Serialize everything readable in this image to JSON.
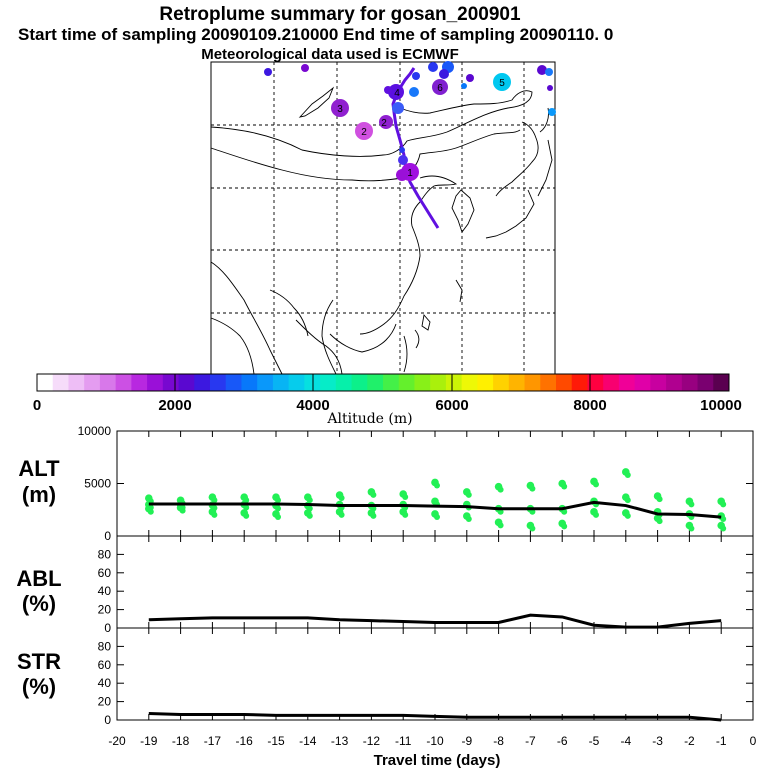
{
  "header": {
    "title": "Retroplume summary for gosan_200901",
    "subtitle": "Start time of sampling 20090109.210000     End time of sampling 20090110.     0",
    "subtitle2": "Meteorological data used is ECMWF"
  },
  "map": {
    "track_color": "#6010e0",
    "puffs": [
      {
        "label": "1",
        "color": "#a010e0"
      },
      {
        "label": "2",
        "color": "#b030e0"
      },
      {
        "label": "2",
        "color": "#d050e0"
      },
      {
        "label": "3",
        "color": "#9020d0"
      },
      {
        "label": "4",
        "color": "#4040ff"
      },
      {
        "label": "5",
        "color": "#00c8f0"
      },
      {
        "label": "6",
        "color": "#8020d0"
      }
    ]
  },
  "colorbar": {
    "ticks": [
      "0",
      "2000",
      "4000",
      "6000",
      "8000",
      "10000"
    ],
    "label": "Altitude (m)",
    "colors": [
      "#ffffff",
      "#f6dcfa",
      "#eebef6",
      "#e49cf0",
      "#d878ea",
      "#cc50e4",
      "#b828e0",
      "#9a10d8",
      "#7808d0",
      "#5a08d0",
      "#3c18e0",
      "#2838f0",
      "#1858f8",
      "#0878fa",
      "#0a98fa",
      "#08b4f4",
      "#06ccec",
      "#06e0e0",
      "#06ecc8",
      "#06f0aa",
      "#0cf08a",
      "#20f06a",
      "#44f048",
      "#64f02c",
      "#88f018",
      "#aaf00c",
      "#ccf406",
      "#eef806",
      "#fff000",
      "#ffd200",
      "#ffb400",
      "#ff9600",
      "#ff7200",
      "#ff4a00",
      "#ff1a08",
      "#ff0040",
      "#f80070",
      "#f00098",
      "#e000a8",
      "#c800a0",
      "#b00090",
      "#980080",
      "#7a0070",
      "#5a0050"
    ]
  },
  "chart_data": [
    {
      "type": "line",
      "panel": "ALT",
      "ylabel_line1": "ALT",
      "ylabel_line2": "(m)",
      "ylim": [
        0,
        10000
      ],
      "xlim": [
        -20,
        0
      ],
      "yticks": [
        "0",
        "5000",
        "10000"
      ],
      "x": [
        -19,
        -18,
        -17,
        -16,
        -15,
        -14,
        -13,
        -12,
        -11,
        -10,
        -9,
        -8,
        -7,
        -6,
        -5,
        -4,
        -3,
        -2,
        -1
      ],
      "values": [
        3050,
        3050,
        3050,
        3050,
        3050,
        3000,
        2900,
        2900,
        2900,
        2850,
        2800,
        2600,
        2600,
        2600,
        3200,
        2900,
        2100,
        2050,
        1800
      ],
      "scatter_color": "#22f055",
      "scatter": [
        [
          -19,
          3600
        ],
        [
          -19,
          3000
        ],
        [
          -19,
          2600
        ],
        [
          -18,
          3400
        ],
        [
          -18,
          3000
        ],
        [
          -18,
          2700
        ],
        [
          -17,
          3700
        ],
        [
          -17,
          2950
        ],
        [
          -17,
          2300
        ],
        [
          -16,
          3700
        ],
        [
          -16,
          3000
        ],
        [
          -16,
          2200
        ],
        [
          -15,
          3700
        ],
        [
          -15,
          2900
        ],
        [
          -15,
          2100
        ],
        [
          -14,
          3700
        ],
        [
          -14,
          2900
        ],
        [
          -14,
          2200
        ],
        [
          -13,
          3900
        ],
        [
          -13,
          3000
        ],
        [
          -13,
          2300
        ],
        [
          -12,
          4200
        ],
        [
          -12,
          2900
        ],
        [
          -12,
          2200
        ],
        [
          -11,
          4000
        ],
        [
          -11,
          3000
        ],
        [
          -11,
          2300
        ],
        [
          -10,
          5100
        ],
        [
          -10,
          3300
        ],
        [
          -10,
          2100
        ],
        [
          -9,
          4200
        ],
        [
          -9,
          3000
        ],
        [
          -9,
          1900
        ],
        [
          -8,
          4700
        ],
        [
          -8,
          2600
        ],
        [
          -8,
          1300
        ],
        [
          -7,
          4800
        ],
        [
          -7,
          2600
        ],
        [
          -7,
          1000
        ],
        [
          -6,
          5000
        ],
        [
          -6,
          2600
        ],
        [
          -6,
          1200
        ],
        [
          -5,
          5200
        ],
        [
          -5,
          3300
        ],
        [
          -5,
          2300
        ],
        [
          -4,
          6100
        ],
        [
          -4,
          3700
        ],
        [
          -4,
          2200
        ],
        [
          -3,
          3800
        ],
        [
          -3,
          2300
        ],
        [
          -3,
          1700
        ],
        [
          -2,
          3300
        ],
        [
          -2,
          2100
        ],
        [
          -2,
          1000
        ],
        [
          -1,
          3300
        ],
        [
          -1,
          1900
        ],
        [
          -1,
          1000
        ]
      ]
    },
    {
      "type": "line",
      "panel": "ABL",
      "ylabel_line1": "ABL",
      "ylabel_line2": "(%)",
      "ylim": [
        0,
        100
      ],
      "xlim": [
        -20,
        0
      ],
      "yticks": [
        "0",
        "20",
        "40",
        "60",
        "80"
      ],
      "x": [
        -19,
        -18,
        -17,
        -16,
        -15,
        -14,
        -13,
        -12,
        -11,
        -10,
        -9,
        -8,
        -7,
        -6,
        -5,
        -4,
        -3,
        -2,
        -1
      ],
      "values": [
        9,
        10,
        11,
        11,
        11,
        11,
        9,
        8,
        7,
        6,
        6,
        6,
        14,
        12,
        3,
        1,
        1,
        5,
        8
      ]
    },
    {
      "type": "line",
      "panel": "STR",
      "ylabel_line1": "STR",
      "ylabel_line2": "(%)",
      "ylim": [
        0,
        100
      ],
      "xlim": [
        -20,
        0
      ],
      "yticks": [
        "0",
        "20",
        "40",
        "60",
        "80"
      ],
      "x": [
        -19,
        -18,
        -17,
        -16,
        -15,
        -14,
        -13,
        -12,
        -11,
        -10,
        -9,
        -8,
        -7,
        -6,
        -5,
        -4,
        -3,
        -2,
        -1
      ],
      "values": [
        7,
        6,
        6,
        6,
        5,
        5,
        5,
        5,
        5,
        4,
        3,
        3,
        3,
        3,
        3,
        3,
        3,
        3,
        0
      ],
      "xticks": [
        "-20",
        "-19",
        "-18",
        "-17",
        "-16",
        "-15",
        "-14",
        "-13",
        "-12",
        "-11",
        "-10",
        "-9",
        "-8",
        "-7",
        "-6",
        "-5",
        "-4",
        "-3",
        "-2",
        "-1",
        "0"
      ],
      "xlabel": "Travel time (days)"
    }
  ]
}
